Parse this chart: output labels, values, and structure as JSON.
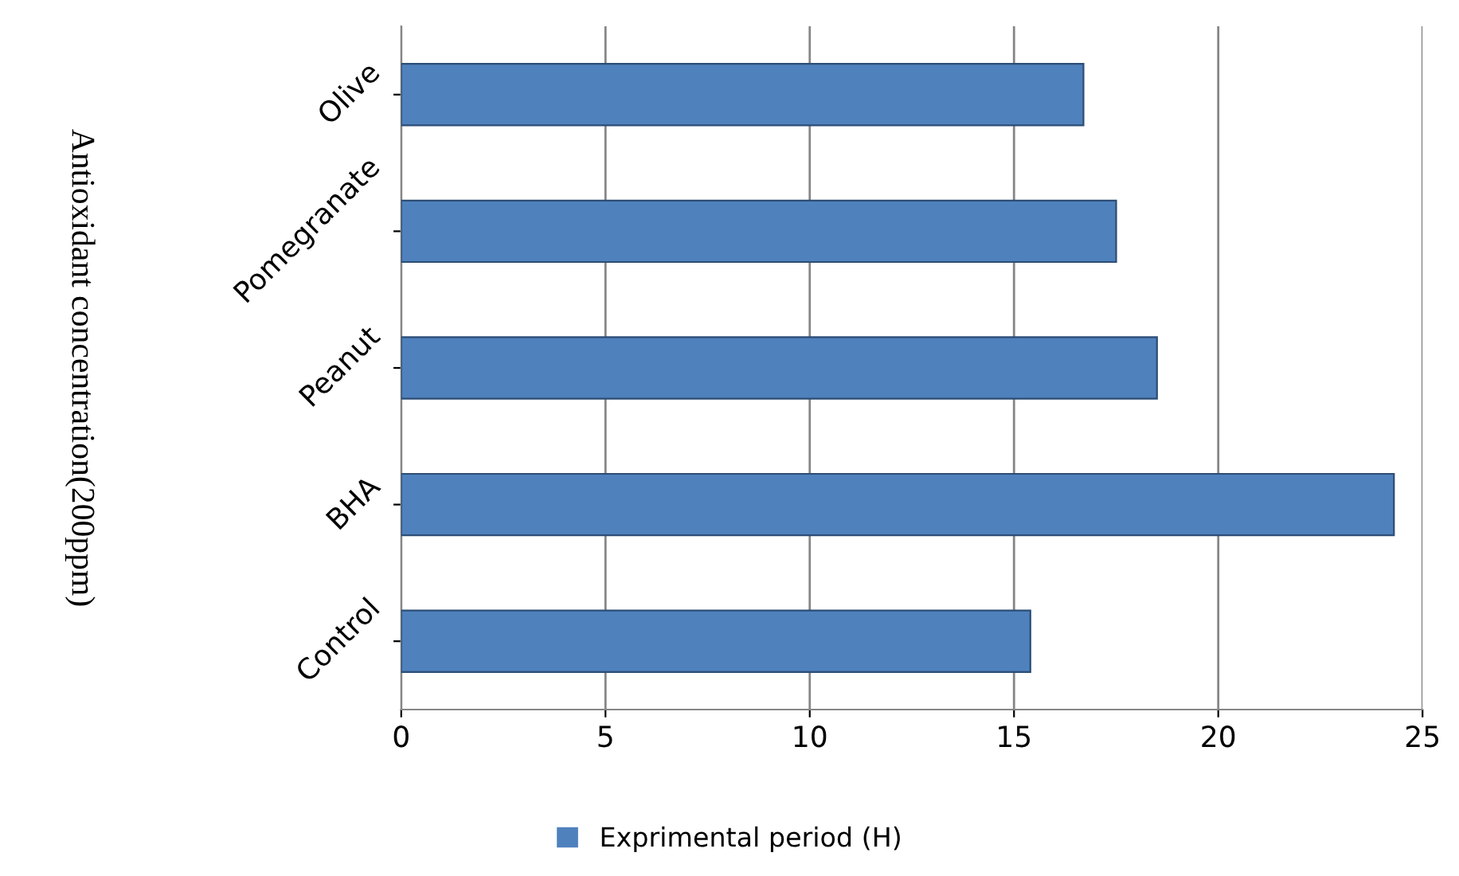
{
  "chart_data": {
    "type": "bar",
    "orientation": "horizontal",
    "ylabel": "Antioxidant concentration(200ppm)",
    "categories": [
      "Olive",
      "Pomegranate",
      "Peanut",
      "BHA",
      "Control"
    ],
    "series": [
      {
        "name": "Exprimental period (H)",
        "color": "#4f81bd",
        "values": [
          16.7,
          17.5,
          18.5,
          24.3,
          15.4
        ]
      }
    ],
    "xlim": [
      0,
      25
    ],
    "xticks": [
      0,
      5,
      10,
      15,
      20,
      25
    ],
    "grid": "x",
    "legend": "bottom"
  }
}
